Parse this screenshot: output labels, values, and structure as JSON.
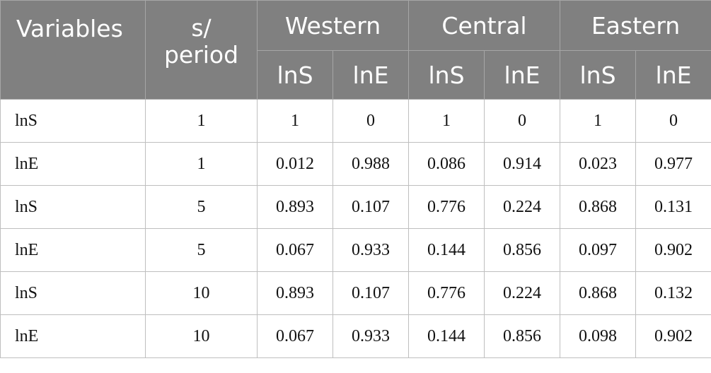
{
  "table": {
    "header": {
      "variables": "Variables",
      "period": [
        "s/",
        "period"
      ],
      "groups": [
        "Western",
        "Central",
        "Eastern"
      ],
      "subheaders": [
        "lnS",
        "lnE",
        "lnS",
        "lnE",
        "lnS",
        "lnE"
      ]
    },
    "rows": [
      [
        "lnS",
        "1",
        "1",
        "0",
        "1",
        "0",
        "1",
        "0"
      ],
      [
        "lnE",
        "1",
        "0.012",
        "0.988",
        "0.086",
        "0.914",
        "0.023",
        "0.977"
      ],
      [
        "lnS",
        "5",
        "0.893",
        "0.107",
        "0.776",
        "0.224",
        "0.868",
        "0.131"
      ],
      [
        "lnE",
        "5",
        "0.067",
        "0.933",
        "0.144",
        "0.856",
        "0.097",
        "0.902"
      ],
      [
        "lnS",
        "10",
        "0.893",
        "0.107",
        "0.776",
        "0.224",
        "0.868",
        "0.132"
      ],
      [
        "lnE",
        "10",
        "0.067",
        "0.933",
        "0.144",
        "0.856",
        "0.098",
        "0.902"
      ]
    ]
  }
}
